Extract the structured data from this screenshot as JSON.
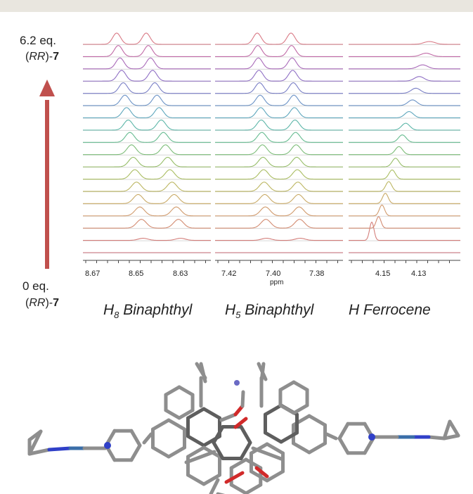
{
  "figure": {
    "arrow": {
      "top_label_line1": "6.2 eq.",
      "top_label_line2_prefix": "(",
      "top_label_line2_italic": "RR",
      "top_label_line2_mid": ")-",
      "top_label_line2_bold": "7",
      "bottom_label_line1": "0 eq.",
      "bottom_label_line2_prefix": "(",
      "bottom_label_line2_italic": "RR",
      "bottom_label_line2_mid": ")-",
      "bottom_label_line2_bold": "7",
      "color": "#c0504d"
    },
    "x_axis_unit": "ppm",
    "panels": [
      {
        "id": "h8",
        "ticks": [
          "8.67",
          "8.65",
          "8.63"
        ],
        "label_pre": "H",
        "label_sub": "8",
        "label_post": " Binaphthyl"
      },
      {
        "id": "h5",
        "ticks": [
          "7.42",
          "7.40",
          "7.38"
        ],
        "label_pre": "H",
        "label_sub": "5",
        "label_post": " Binaphthyl"
      },
      {
        "id": "hfc",
        "ticks": [
          "4.15",
          "4.13"
        ],
        "label_pre": "H",
        "label_sub": "",
        "label_post": " Ferrocene"
      }
    ],
    "spectra_count": 18,
    "trace_colors": [
      "#d97a86",
      "#c06aa6",
      "#a96ab9",
      "#8f6fc4",
      "#7a7fc6",
      "#6c93c6",
      "#5fa7bd",
      "#5cb6a8",
      "#66bb90",
      "#7dbd79",
      "#96bd68",
      "#aabd62",
      "#bcb662",
      "#c9aa66",
      "#d09a6c",
      "#d38c72",
      "#d47f7b",
      "#d27681"
    ]
  },
  "molecule": {
    "atom_colors": {
      "carbon": "#8f8f8f",
      "oxygen": "#d12a2a",
      "nitrogen": "#3040c8",
      "metal": "#2bb0d0",
      "ion": "#6060c0"
    }
  }
}
